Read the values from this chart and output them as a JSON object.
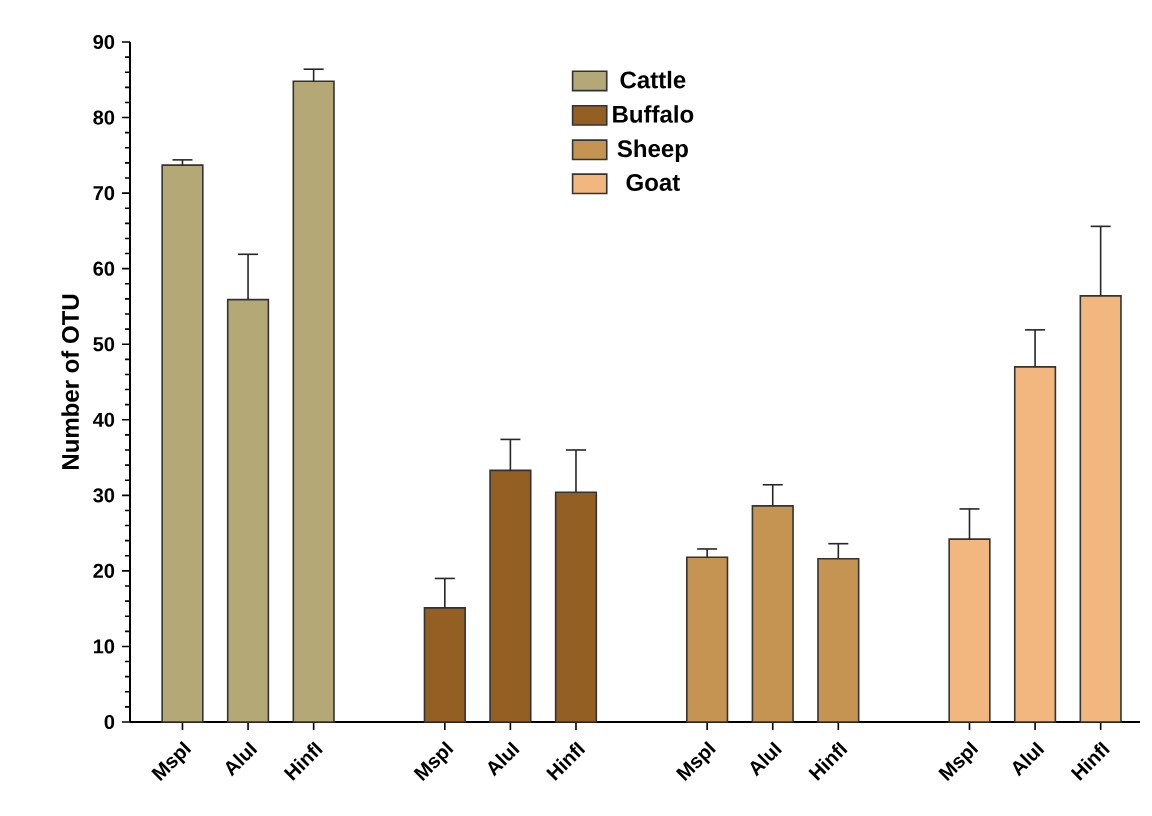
{
  "chart_data": {
    "type": "bar",
    "ylabel": "Number of OTU",
    "categories": [
      "MspI",
      "AluI",
      "HinfI",
      null,
      "MspI",
      "AluI",
      "HinfI",
      null,
      "MspI",
      "AluI",
      "HinfI",
      null,
      "MspI",
      "AluI",
      "HinfI"
    ],
    "series": [
      {
        "name": "Cattle",
        "color": "#b3a876",
        "values": [
          73.7,
          55.9,
          84.8,
          null,
          null,
          null,
          null,
          null,
          null,
          null,
          null,
          null,
          null,
          null,
          null
        ],
        "errors": [
          [
            73.7,
            74.4
          ],
          [
            55.9,
            61.9
          ],
          [
            84.8,
            86.4
          ],
          null,
          null,
          null,
          null,
          null,
          null,
          null,
          null,
          null,
          null,
          null,
          null
        ]
      },
      {
        "name": "Buffalo",
        "color": "#935f22",
        "values": [
          null,
          null,
          null,
          null,
          15.1,
          33.3,
          30.4,
          null,
          null,
          null,
          null,
          null,
          null,
          null,
          null
        ],
        "errors": [
          null,
          null,
          null,
          null,
          [
            15.1,
            19.0
          ],
          [
            33.3,
            37.4
          ],
          [
            30.4,
            36.0
          ],
          null,
          null,
          null,
          null,
          null,
          null,
          null,
          null
        ]
      },
      {
        "name": "Sheep",
        "color": "#c59352",
        "values": [
          null,
          null,
          null,
          null,
          null,
          null,
          null,
          null,
          21.8,
          28.6,
          21.6,
          null,
          null,
          null,
          null
        ],
        "errors": [
          null,
          null,
          null,
          null,
          null,
          null,
          null,
          null,
          [
            21.8,
            22.9
          ],
          [
            28.6,
            31.4
          ],
          [
            21.6,
            23.6
          ],
          null,
          null,
          null,
          null
        ]
      },
      {
        "name": "Goat",
        "color": "#f2b77e",
        "values": [
          null,
          null,
          null,
          null,
          null,
          null,
          null,
          null,
          null,
          null,
          null,
          null,
          24.2,
          47.0,
          56.4
        ],
        "errors": [
          null,
          null,
          null,
          null,
          null,
          null,
          null,
          null,
          null,
          null,
          null,
          null,
          [
            24.2,
            28.2
          ],
          [
            47.0,
            51.9
          ],
          [
            56.4,
            65.6
          ]
        ]
      }
    ],
    "ylim": [
      0,
      90
    ],
    "yticks": [
      0,
      10,
      20,
      30,
      40,
      50,
      60,
      70,
      80,
      90
    ],
    "grid": false,
    "legend": "top"
  }
}
